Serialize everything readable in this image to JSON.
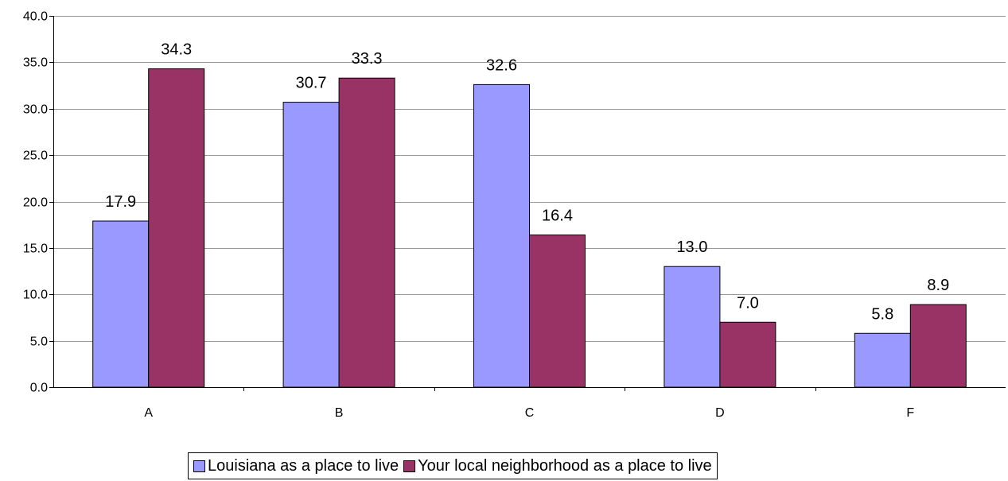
{
  "chart_data": {
    "type": "bar",
    "categories": [
      "A",
      "B",
      "C",
      "D",
      "F"
    ],
    "series": [
      {
        "name": "Louisiana as a place to live",
        "values": [
          17.9,
          30.7,
          32.6,
          13.0,
          5.8
        ],
        "color": "#9999ff"
      },
      {
        "name": "Your local neighborhood as a place to live",
        "values": [
          34.3,
          33.3,
          16.4,
          7.0,
          8.9
        ],
        "color": "#993366"
      }
    ],
    "ylim": [
      0,
      40
    ],
    "yticks": [
      "0.0",
      "5.0",
      "10.0",
      "15.0",
      "20.0",
      "25.0",
      "30.0",
      "35.0",
      "40.0"
    ],
    "grid": true,
    "legend_position": "bottom",
    "title": "",
    "xlabel": "",
    "ylabel": ""
  }
}
